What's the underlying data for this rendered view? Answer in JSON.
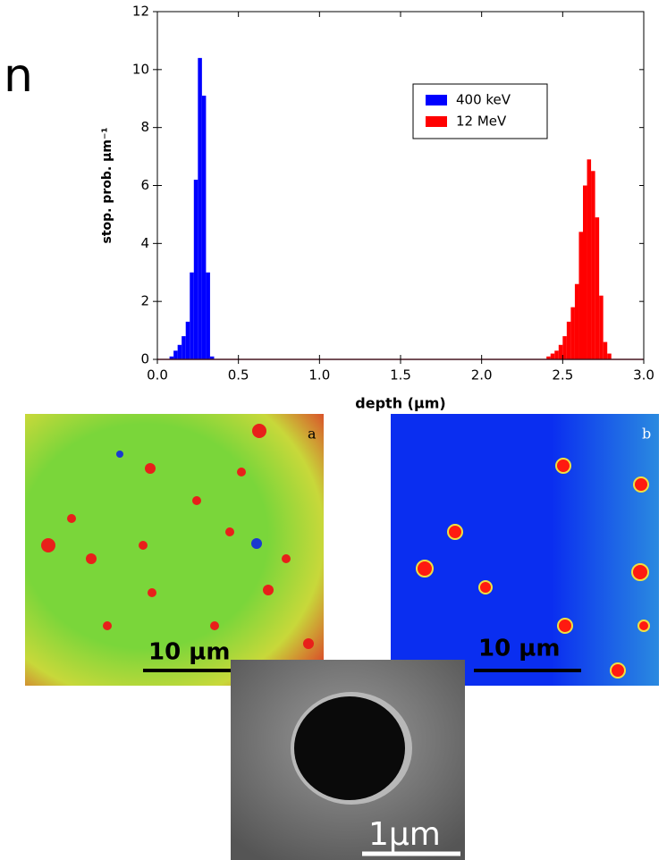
{
  "slide_fragment": "n",
  "chart_data": {
    "type": "histogram",
    "x_label": "depth (µm)",
    "y_label": "stop. prob. µm⁻¹",
    "xlim": [
      0,
      3
    ],
    "ylim": [
      0,
      12
    ],
    "xticks": [
      {
        "value": 0,
        "label": "0.0"
      },
      0.5,
      {
        "value": 1,
        "label": "1.0"
      },
      1.5,
      {
        "value": 2,
        "label": "2.0"
      },
      2.5,
      {
        "value": 3,
        "label": "3.0"
      }
    ],
    "yticks": [
      0,
      2,
      4,
      6,
      8,
      10,
      12
    ],
    "grid": false,
    "legend": "upper center",
    "series": [
      {
        "name": "400 keV",
        "color": "#0000ff",
        "bins": [
          0.075,
          0.1,
          0.125,
          0.15,
          0.175,
          0.2,
          0.225,
          0.25,
          0.275,
          0.3,
          0.325,
          0.35
        ],
        "values": [
          0.1,
          0.3,
          0.5,
          0.8,
          1.3,
          3.0,
          6.2,
          10.4,
          9.1,
          3.0,
          0.1
        ]
      },
      {
        "name": "12 MeV",
        "color": "#ff0000",
        "bins": [
          2.4,
          2.425,
          2.45,
          2.475,
          2.5,
          2.525,
          2.55,
          2.575,
          2.6,
          2.625,
          2.65,
          2.675,
          2.7,
          2.725,
          2.75,
          2.775,
          2.8
        ],
        "values": [
          0.1,
          0.2,
          0.3,
          0.5,
          0.8,
          1.3,
          1.8,
          2.6,
          4.4,
          6.0,
          6.9,
          6.5,
          4.9,
          2.2,
          0.6,
          0.2
        ]
      }
    ]
  },
  "panels": [
    {
      "label": "a",
      "scale_bar": "10 µm"
    },
    {
      "label": "b",
      "scale_bar": "10 µm"
    },
    {
      "scale_bar": "1µm"
    }
  ]
}
